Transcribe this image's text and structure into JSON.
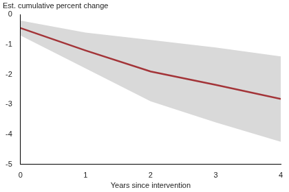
{
  "chart_data": {
    "type": "line",
    "y_label": "Est. cumulative percent change",
    "x_label": "Years since intervention",
    "x": [
      0,
      1,
      2,
      3,
      4
    ],
    "series": [
      {
        "color": "#a33438",
        "values": [
          -0.45,
          -1.2,
          -1.9,
          -2.35,
          -2.82
        ],
        "lower": [
          -0.7,
          -1.8,
          -2.9,
          -3.6,
          -4.25
        ],
        "upper": [
          -0.2,
          -0.6,
          -0.85,
          -1.1,
          -1.4
        ]
      }
    ],
    "xlim": [
      0,
      4
    ],
    "xticks": [
      0,
      1,
      2,
      3,
      4
    ],
    "ylim": [
      -5,
      0
    ],
    "yticks": [
      -5,
      -4,
      -3,
      -2,
      -1,
      0
    ],
    "grid": false
  }
}
